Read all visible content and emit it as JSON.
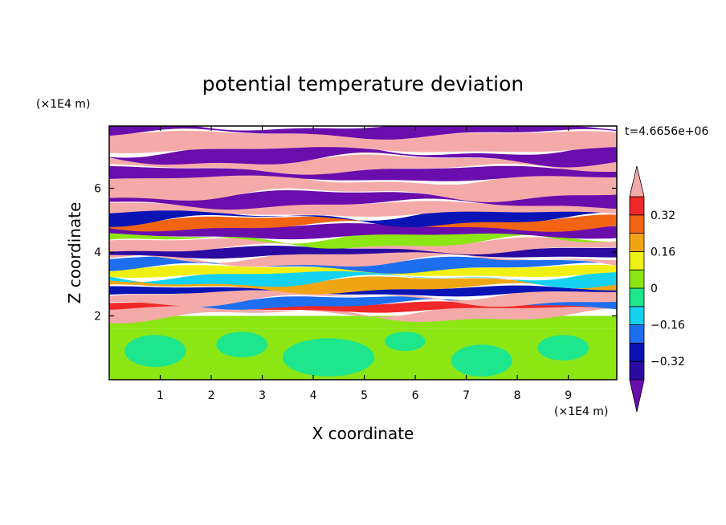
{
  "chart_data": {
    "type": "heatmap",
    "title": "potential temperature deviation",
    "xlabel": "X coordinate",
    "ylabel": "Z coordinate",
    "x_unit": "(×1E4 m)",
    "y_unit": "(×1E4 m)",
    "time_label": "t=4.6656e+06",
    "xlim": [
      0,
      9.95
    ],
    "ylim": [
      0,
      7.95
    ],
    "x_ticks": [
      1,
      2,
      3,
      4,
      5,
      6,
      7,
      8,
      9
    ],
    "y_ticks": [
      2,
      4,
      6
    ],
    "x_tick_labels": [
      "1",
      "2",
      "3",
      "4",
      "5",
      "6",
      "7",
      "8",
      "9"
    ],
    "y_tick_labels": [
      "2",
      "4",
      "6"
    ],
    "colorbar": {
      "levels": [
        -0.48,
        -0.4,
        -0.32,
        -0.24,
        -0.16,
        -0.08,
        0,
        0.08,
        0.16,
        0.24,
        0.32,
        0.4,
        0.48
      ],
      "colors": [
        "#6a0dad",
        "#2a0aa0",
        "#0a14b4",
        "#1e6ef0",
        "#14d2f0",
        "#1ee68c",
        "#8ce614",
        "#f0f014",
        "#f0a514",
        "#f06414",
        "#f02828",
        "#f5aaaa"
      ],
      "tick_values": [
        0.32,
        0.16,
        0,
        -0.16,
        -0.32
      ],
      "tick_labels": [
        "0.32",
        "0.16",
        "0",
        "−0.16",
        "−0.32"
      ],
      "extend": "both"
    },
    "bands": [
      {
        "z0": 0.0,
        "z1": 1.6,
        "value": 0.02
      },
      {
        "z0": 1.6,
        "z1": 2.0,
        "value": 0.05
      },
      {
        "z0": 2.0,
        "z1": 2.2,
        "value": 0.48
      },
      {
        "z0": 2.2,
        "z1": 2.35,
        "value": 0.35
      },
      {
        "z0": 2.35,
        "z1": 2.5,
        "value": -0.2
      },
      {
        "z0": 2.5,
        "z1": 2.7,
        "value": 0.48
      },
      {
        "z0": 2.7,
        "z1": 2.85,
        "value": -0.3
      },
      {
        "z0": 2.85,
        "z1": 3.1,
        "value": 0.2
      },
      {
        "z0": 3.1,
        "z1": 3.3,
        "value": -0.12
      },
      {
        "z0": 3.3,
        "z1": 3.5,
        "value": 0.1
      },
      {
        "z0": 3.5,
        "z1": 3.7,
        "value": -0.2
      },
      {
        "z0": 3.7,
        "z1": 3.9,
        "value": 0.48
      },
      {
        "z0": 3.9,
        "z1": 4.1,
        "value": -0.38
      },
      {
        "z0": 4.1,
        "z1": 4.3,
        "value": 0.48
      },
      {
        "z0": 4.3,
        "z1": 4.5,
        "value": 0.05
      },
      {
        "z0": 4.5,
        "z1": 4.8,
        "value": -0.45
      },
      {
        "z0": 4.8,
        "z1": 5.0,
        "value": 0.3
      },
      {
        "z0": 5.0,
        "z1": 5.2,
        "value": -0.25
      },
      {
        "z0": 5.2,
        "z1": 5.5,
        "value": 0.48
      },
      {
        "z0": 5.5,
        "z1": 5.8,
        "value": -0.48
      },
      {
        "z0": 5.8,
        "z1": 6.3,
        "value": 0.48
      },
      {
        "z0": 6.3,
        "z1": 6.6,
        "value": -0.48
      },
      {
        "z0": 6.6,
        "z1": 6.9,
        "value": 0.48
      },
      {
        "z0": 6.9,
        "z1": 7.2,
        "value": -0.48
      },
      {
        "z0": 7.2,
        "z1": 7.7,
        "value": 0.48
      },
      {
        "z0": 7.7,
        "z1": 7.95,
        "value": -0.48
      }
    ]
  }
}
